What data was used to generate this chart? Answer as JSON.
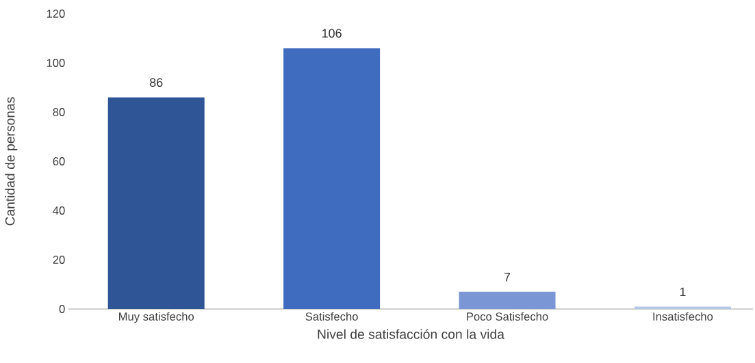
{
  "chart_data": {
    "type": "bar",
    "xlabel": "Nivel de satisfacción con la vida",
    "ylabel": "Cantidad de personas",
    "categories": [
      "Muy satisfecho",
      "Satisfecho",
      "Poco Satisfecho",
      "Insatisfecho"
    ],
    "values": [
      86,
      106,
      7,
      1
    ],
    "colors": [
      "#2f5597",
      "#3f6cbe",
      "#7b96d4",
      "#b4c7e7"
    ],
    "ylim": [
      0,
      120
    ],
    "yticks": [
      0,
      20,
      40,
      60,
      80,
      100,
      120
    ],
    "data_labels": true
  }
}
